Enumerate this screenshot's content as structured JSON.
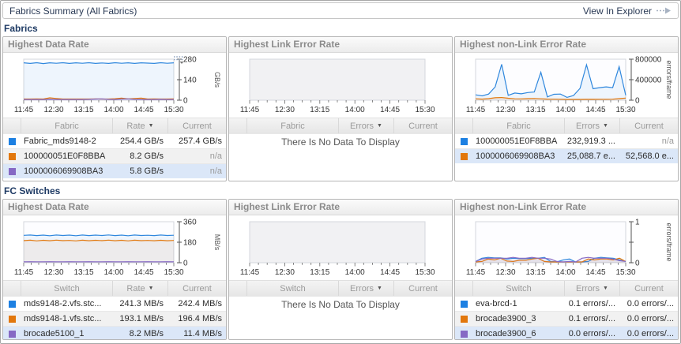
{
  "header": {
    "title": "Fabrics Summary (All Fabrics)",
    "action_label": "View In Explorer"
  },
  "sections": [
    {
      "heading": "Fabrics",
      "panels": [
        {
          "title": "Highest Data Rate",
          "chart": {
            "type": "line",
            "x_ticks": [
              "11:45",
              "12:30",
              "13:15",
              "14:00",
              "14:45",
              "15:30"
            ],
            "y_ticks": [
              "0",
              "140",
              "280"
            ],
            "y_unit": "GB/s",
            "ymax": 280,
            "series": [
              {
                "name": "Fabric_mds9148-2",
                "color": "#2f87dd",
                "values": [
                  255,
                  251,
                  256,
                  250,
                  255,
                  252,
                  256,
                  251,
                  255,
                  252,
                  256,
                  251,
                  254,
                  251,
                  256,
                  252,
                  255,
                  251,
                  255,
                  253,
                  251,
                  256,
                  252,
                  255
                ]
              },
              {
                "name": "100000051E0F8BBA",
                "color": "#e2770c",
                "values": [
                  8,
                  8,
                  9,
                  8,
                  16,
                  12,
                  8,
                  8,
                  8,
                  8,
                  8,
                  9,
                  8,
                  8,
                  10,
                  14,
                  9,
                  12,
                  14,
                  8,
                  9,
                  8,
                  8,
                  9
                ]
              },
              {
                "name": "1000006069908BA3",
                "color": "#8669c4",
                "values": [
                  5,
                  5,
                  5,
                  5,
                  6,
                  5,
                  5,
                  5,
                  5,
                  5,
                  6,
                  8,
                  9,
                  6,
                  5,
                  8,
                  9,
                  6,
                  5,
                  5,
                  5,
                  6,
                  5,
                  5
                ]
              }
            ]
          },
          "table": {
            "columns": [
              "Fabric",
              "Rate",
              "Current"
            ],
            "sorted_by": "Rate",
            "rows": [
              {
                "swatch": "#1d80e2",
                "name": "Fabric_mds9148-2",
                "value": "254.4 GB/s",
                "current": "257.4 GB/s",
                "selected": false
              },
              {
                "swatch": "#e2770c",
                "name": "100000051E0F8BBA",
                "value": "8.2 GB/s",
                "current": "n/a",
                "selected": false
              },
              {
                "swatch": "#8669c4",
                "name": "1000006069908BA3",
                "value": "5.8 GB/s",
                "current": "n/a",
                "selected": true
              }
            ]
          }
        },
        {
          "title": "Highest Link Error Rate",
          "chart": {
            "type": "empty",
            "x_ticks": [
              "11:45",
              "12:30",
              "13:15",
              "14:00",
              "14:45",
              "15:30"
            ],
            "y_ticks": [],
            "y_unit": "",
            "ymax": 0,
            "series": []
          },
          "table": {
            "columns": [
              "Fabric",
              "Errors",
              "Current"
            ],
            "sorted_by": "Errors",
            "rows": [],
            "empty_message": "There Is No Data To Display"
          }
        },
        {
          "title": "Highest non-Link Error Rate",
          "chart": {
            "type": "line",
            "x_ticks": [
              "11:45",
              "12:30",
              "13:15",
              "14:00",
              "14:45",
              "15:30"
            ],
            "y_ticks": [
              "0",
              "400000",
              "800000"
            ],
            "y_unit": "errors/frame",
            "ymax": 800000,
            "series": [
              {
                "name": "100000051E0F8BBA",
                "color": "#2f87dd",
                "values": [
                  105000,
                  85000,
                  120000,
                  260000,
                  700000,
                  95000,
                  140000,
                  125000,
                  150000,
                  160000,
                  545000,
                  65000,
                  115000,
                  120000,
                  55000,
                  90000,
                  230000,
                  690000,
                  225000,
                  245000,
                  260000,
                  245000,
                  655000,
                  95000
                ]
              },
              {
                "name": "1000006069908BA3",
                "color": "#e2770c",
                "values": [
                  28000,
                  22000,
                  30000,
                  48000,
                  52000,
                  38000,
                  28000,
                  26000,
                  30000,
                  34000,
                  28000,
                  22000,
                  20000,
                  18000,
                  16000,
                  16000,
                  16000,
                  17000,
                  17000,
                  18000,
                  18000,
                  20000,
                  30000,
                  42000
                ]
              }
            ]
          },
          "table": {
            "columns": [
              "Fabric",
              "Errors",
              "Current"
            ],
            "sorted_by": "Errors",
            "rows": [
              {
                "swatch": "#1d80e2",
                "name": "100000051E0F8BBA",
                "value": "232,919.3 ...",
                "current": "n/a",
                "selected": false
              },
              {
                "swatch": "#e2770c",
                "name": "1000006069908BA3",
                "value": "25,088.7 e...",
                "current": "52,568.0 e...",
                "selected": true
              }
            ]
          }
        }
      ]
    },
    {
      "heading": "FC Switches",
      "panels": [
        {
          "title": "Highest Data Rate",
          "chart": {
            "type": "line",
            "x_ticks": [
              "11:45",
              "12:30",
              "13:15",
              "14:00",
              "14:45",
              "15:30"
            ],
            "y_ticks": [
              "0",
              "180",
              "360"
            ],
            "y_unit": "MB/s",
            "ymax": 360,
            "series": [
              {
                "name": "mds9148-2.vfs.stc...",
                "color": "#2f87dd",
                "values": [
                  240,
                  243,
                  238,
                  242,
                  237,
                  243,
                  239,
                  242,
                  237,
                  243,
                  238,
                  242,
                  239,
                  244,
                  238,
                  242,
                  237,
                  243,
                  239,
                  241,
                  238,
                  243,
                  239,
                  241
                ]
              },
              {
                "name": "mds9148-1.vfs.stc...",
                "color": "#e2770c",
                "values": [
                  194,
                  198,
                  192,
                  197,
                  193,
                  199,
                  194,
                  196,
                  192,
                  198,
                  193,
                  197,
                  194,
                  199,
                  193,
                  197,
                  192,
                  198,
                  194,
                  196,
                  193,
                  197,
                  193,
                  196
                ]
              },
              {
                "name": "brocade5100_1",
                "color": "#8669c4",
                "values": [
                  8,
                  9,
                  8,
                  8,
                  9,
                  8,
                  8,
                  9,
                  8,
                  8,
                  9,
                  8,
                  8,
                  9,
                  8,
                  8,
                  9,
                  8,
                  8,
                  9,
                  8,
                  8,
                  9,
                  8
                ]
              }
            ]
          },
          "table": {
            "columns": [
              "Switch",
              "Rate",
              "Current"
            ],
            "sorted_by": "Rate",
            "rows": [
              {
                "swatch": "#1d80e2",
                "name": "mds9148-2.vfs.stc...",
                "value": "241.3 MB/s",
                "current": "242.4 MB/s",
                "selected": false
              },
              {
                "swatch": "#e2770c",
                "name": "mds9148-1.vfs.stc...",
                "value": "193.1 MB/s",
                "current": "196.4 MB/s",
                "selected": false
              },
              {
                "swatch": "#8669c4",
                "name": "brocade5100_1",
                "value": "8.2 MB/s",
                "current": "11.4 MB/s",
                "selected": true
              }
            ]
          }
        },
        {
          "title": "Highest Link Error Rate",
          "chart": {
            "type": "empty",
            "x_ticks": [
              "11:45",
              "12:30",
              "13:15",
              "14:00",
              "14:45",
              "15:30"
            ],
            "y_ticks": [],
            "y_unit": "",
            "ymax": 0,
            "series": []
          },
          "table": {
            "columns": [
              "Switch",
              "Errors",
              "Current"
            ],
            "sorted_by": "Errors",
            "rows": [],
            "empty_message": "There Is No Data To Display"
          }
        },
        {
          "title": "Highest non-Link Error Rate",
          "chart": {
            "type": "line",
            "x_ticks": [
              "11:45",
              "12:30",
              "13:15",
              "14:00",
              "14:45",
              "15:30"
            ],
            "y_ticks": [
              "0",
              "",
              "1"
            ],
            "y_unit": "errors/frame",
            "ymax": 1,
            "series": [
              {
                "name": "eva-brcd-1",
                "color": "#2f87dd",
                "values": [
                  0.03,
                  0.11,
                  0.13,
                  0.12,
                  0.12,
                  0.09,
                  0.11,
                  0.1,
                  0.1,
                  0.11,
                  0.11,
                  0.13,
                  0.03,
                  0.02,
                  0.07,
                  0.09,
                  0.02,
                  0.02,
                  0.03,
                  0.11,
                  0.13,
                  0.12,
                  0.11,
                  0.07,
                  0.03
                ]
              },
              {
                "name": "brocade3900_3",
                "color": "#e2770c",
                "values": [
                  0.02,
                  0.03,
                  0.09,
                  0.07,
                  0.11,
                  0.04,
                  0.03,
                  0.06,
                  0.06,
                  0.09,
                  0.11,
                  0.03,
                  0.02,
                  0.02,
                  0.02,
                  0.02,
                  0.02,
                  0.02,
                  0.09,
                  0.07,
                  0.09,
                  0.09,
                  0.07,
                  0.11,
                  0.03
                ]
              },
              {
                "name": "brocade3900_6",
                "color": "#8669c4",
                "values": [
                  0.03,
                  0.09,
                  0.11,
                  0.11,
                  0.11,
                  0.11,
                  0.13,
                  0.11,
                  0.11,
                  0.13,
                  0.11,
                  0.11,
                  0.09,
                  0.03,
                  0.02,
                  0.03,
                  0.02,
                  0.11,
                  0.13,
                  0.11,
                  0.11,
                  0.11,
                  0.09,
                  0.05,
                  0.03
                ]
              }
            ]
          },
          "table": {
            "columns": [
              "Switch",
              "Errors",
              "Current"
            ],
            "sorted_by": "Errors",
            "rows": [
              {
                "swatch": "#1d80e2",
                "name": "eva-brcd-1",
                "value": "0.1 errors/...",
                "current": "0.0 errors/...",
                "selected": false
              },
              {
                "swatch": "#e2770c",
                "name": "brocade3900_3",
                "value": "0.1 errors/...",
                "current": "0.0 errors/...",
                "selected": false
              },
              {
                "swatch": "#8669c4",
                "name": "brocade3900_6",
                "value": "0.0 errors/...",
                "current": "0.0 errors/...",
                "selected": true
              }
            ]
          }
        }
      ]
    }
  ]
}
